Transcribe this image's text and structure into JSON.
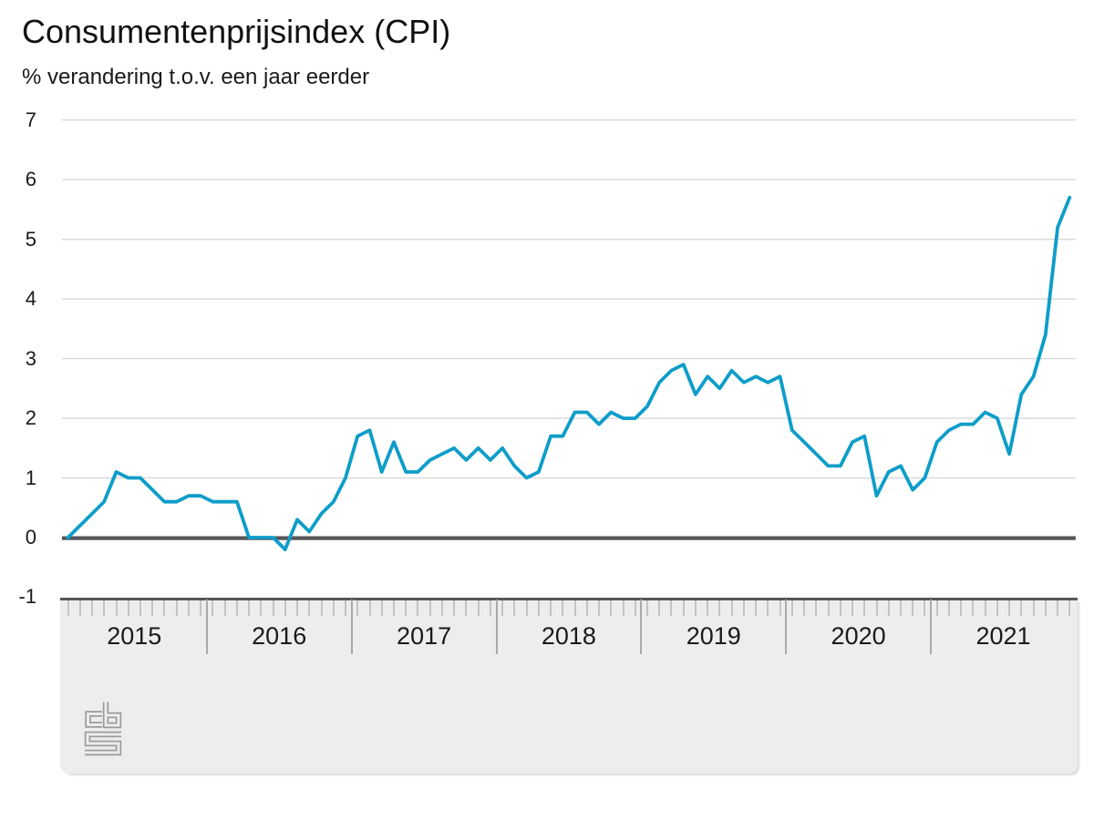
{
  "header": {
    "title": "Consumentenprijsindex (CPI)",
    "subtitle": "% verandering t.o.v. een jaar eerder"
  },
  "chart_data": {
    "type": "line",
    "title": "Consumentenprijsindex (CPI)",
    "ylabel": "% verandering t.o.v. een jaar eerder",
    "xlabel": "",
    "x_years": [
      "2015",
      "2016",
      "2017",
      "2018",
      "2019",
      "2020",
      "2021"
    ],
    "frequency": "monthly",
    "start": "2015-01",
    "end": "2021-12",
    "ylim": [
      -1,
      7
    ],
    "yticks": [
      7,
      6,
      5,
      4,
      3,
      2,
      1,
      0,
      -1
    ],
    "grid": "horizontal",
    "zero_line": true,
    "legend_position": "none",
    "series": [
      {
        "name": "CPI % verandering t.o.v. een jaar eerder",
        "color": "#0d9dc9",
        "values": [
          0.0,
          0.2,
          0.4,
          0.6,
          1.1,
          1.0,
          1.0,
          0.8,
          0.6,
          0.6,
          0.7,
          0.7,
          0.6,
          0.6,
          0.6,
          0.0,
          0.0,
          0.0,
          -0.2,
          0.3,
          0.1,
          0.4,
          0.6,
          1.0,
          1.7,
          1.8,
          1.1,
          1.6,
          1.1,
          1.1,
          1.3,
          1.4,
          1.5,
          1.3,
          1.5,
          1.3,
          1.5,
          1.2,
          1.0,
          1.1,
          1.7,
          1.7,
          2.1,
          2.1,
          1.9,
          2.1,
          2.0,
          2.0,
          2.2,
          2.6,
          2.8,
          2.9,
          2.4,
          2.7,
          2.5,
          2.8,
          2.6,
          2.7,
          2.6,
          2.7,
          1.8,
          1.6,
          1.4,
          1.2,
          1.2,
          1.6,
          1.7,
          0.7,
          1.1,
          1.2,
          0.8,
          1.0,
          1.6,
          1.8,
          1.9,
          1.9,
          2.1,
          2.0,
          1.4,
          2.4,
          2.7,
          3.4,
          5.2,
          5.7
        ]
      }
    ]
  },
  "colors": {
    "line": "#0d9dc9",
    "grid": "#d9d9d9",
    "zero_line": "#57575b",
    "band_fill": "#ededed",
    "band_top": "#57575b",
    "month_tick": "#c3c3c3",
    "year_divider": "#a9a9a9",
    "logo": "#9c9c9c",
    "text": "#1a1a1a"
  },
  "footer": {
    "logo": "cbs"
  }
}
